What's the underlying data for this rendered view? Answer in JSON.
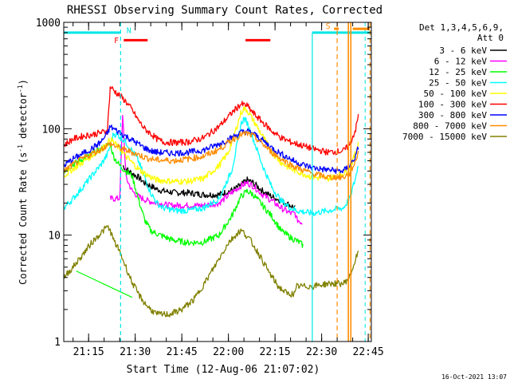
{
  "chart_data": {
    "type": "line",
    "title": "RHESSI Observing Summary Count Rates, Corrected",
    "xlabel": "Start Time (12-Aug-06 21:07:02)",
    "ylabel_main": "Corrected Count Rate (s",
    "ylabel_exp1": "-1",
    "ylabel_mid": " detector",
    "ylabel_exp2": "-1",
    "ylabel_end": ")",
    "y_scale": "log",
    "ylim": [
      1,
      1000
    ],
    "xlim": [
      0,
      99
    ],
    "x_ticks": [
      {
        "t": 8,
        "label": "21:15"
      },
      {
        "t": 23,
        "label": "21:30"
      },
      {
        "t": 38,
        "label": "21:45"
      },
      {
        "t": 53,
        "label": "22:00"
      },
      {
        "t": 68,
        "label": "22:15"
      },
      {
        "t": 83,
        "label": "22:30"
      },
      {
        "t": 98,
        "label": "22:45"
      }
    ],
    "y_ticks": [
      {
        "v": 1,
        "label": "1"
      },
      {
        "v": 10,
        "label": "10"
      },
      {
        "v": 100,
        "label": "100"
      },
      {
        "v": 1000,
        "label": "1000"
      }
    ],
    "legend_header": [
      "Det 1,3,4,5,6,9,",
      "Att 0"
    ],
    "legend_placement": "right",
    "footer_date": "16-Oct-2021 13:07",
    "flags": {
      "N": {
        "label": "N",
        "color": "#00e5e5"
      },
      "F": {
        "label": "F",
        "color": "#ff0000"
      },
      "S": {
        "label": "S",
        "color": "#ff8c00"
      }
    },
    "series": [
      {
        "name": "3 - 6 keV",
        "color": "#000000",
        "points": [
          [
            19,
            45
          ],
          [
            20,
            42
          ],
          [
            22,
            38
          ],
          [
            24,
            35
          ],
          [
            26,
            31
          ],
          [
            28,
            29
          ],
          [
            30,
            27
          ],
          [
            32,
            26
          ],
          [
            36,
            25
          ],
          [
            40,
            25
          ],
          [
            45,
            24
          ],
          [
            50,
            24
          ],
          [
            55,
            27
          ],
          [
            58,
            31
          ],
          [
            59,
            33
          ],
          [
            61,
            31
          ],
          [
            64,
            26
          ],
          [
            67,
            23
          ],
          [
            70,
            21
          ],
          [
            73,
            19
          ],
          [
            74.5,
            18
          ]
        ]
      },
      {
        "name": "6 - 12 keV",
        "color": "#ff00ff",
        "points": [
          [
            15,
            22
          ],
          [
            17,
            22
          ],
          [
            18,
            22
          ],
          [
            19,
            140
          ],
          [
            20,
            35
          ],
          [
            22,
            26
          ],
          [
            24,
            23
          ],
          [
            27,
            21
          ],
          [
            30,
            20
          ],
          [
            34,
            19
          ],
          [
            38,
            19
          ],
          [
            45,
            19
          ],
          [
            50,
            20
          ],
          [
            54,
            25
          ],
          [
            57,
            29
          ],
          [
            59,
            31
          ],
          [
            61,
            29
          ],
          [
            64,
            24
          ],
          [
            67,
            21
          ],
          [
            70,
            18
          ],
          [
            73,
            16
          ],
          [
            74.5,
            16
          ],
          [
            75,
            14
          ],
          [
            77,
            13
          ]
        ]
      },
      {
        "name": "12 - 25 keV",
        "color": "#00ff00",
        "points": [
          [
            0,
            40
          ],
          [
            3,
            46
          ],
          [
            6,
            52
          ],
          [
            9,
            58
          ],
          [
            12,
            64
          ],
          [
            14,
            70
          ],
          [
            15,
            72
          ],
          [
            16,
            55
          ],
          [
            18,
            45
          ],
          [
            20,
            40
          ],
          [
            22,
            36
          ],
          [
            24,
            22
          ],
          [
            26,
            14
          ],
          [
            28,
            11
          ],
          [
            31,
            10
          ],
          [
            35,
            9
          ],
          [
            40,
            8.5
          ],
          [
            45,
            8.6
          ],
          [
            50,
            10
          ],
          [
            54,
            15
          ],
          [
            57,
            23
          ],
          [
            59,
            26
          ],
          [
            61,
            24
          ],
          [
            64,
            19
          ],
          [
            67,
            15
          ],
          [
            70,
            11
          ],
          [
            73,
            9.5
          ],
          [
            74.5,
            9
          ],
          [
            76,
            8.5
          ],
          [
            77,
            8
          ]
        ]
      },
      {
        "name": "25 - 50 keV",
        "color": "#00ffff",
        "points": [
          [
            0,
            18
          ],
          [
            3,
            22
          ],
          [
            6,
            28
          ],
          [
            9,
            36
          ],
          [
            12,
            46
          ],
          [
            14,
            57
          ],
          [
            15,
            70
          ],
          [
            16,
            90
          ],
          [
            18,
            85
          ],
          [
            20,
            75
          ],
          [
            22,
            62
          ],
          [
            24,
            50
          ],
          [
            26,
            35
          ],
          [
            28,
            25
          ],
          [
            30,
            20
          ],
          [
            32,
            18
          ],
          [
            36,
            17
          ],
          [
            40,
            17
          ],
          [
            45,
            18
          ],
          [
            50,
            22
          ],
          [
            54,
            40
          ],
          [
            56,
            75
          ],
          [
            57,
            110
          ],
          [
            58,
            125
          ],
          [
            59,
            115
          ],
          [
            61,
            80
          ],
          [
            64,
            45
          ],
          [
            67,
            28
          ],
          [
            70,
            21
          ],
          [
            73,
            18
          ],
          [
            75,
            17
          ],
          [
            80,
            16
          ],
          [
            85,
            17
          ],
          [
            90,
            18
          ],
          [
            92,
            22
          ],
          [
            94,
            35
          ],
          [
            95,
            50
          ]
        ]
      },
      {
        "name": "50 - 100 keV",
        "color": "#ffff00",
        "points": [
          [
            0,
            36
          ],
          [
            3,
            42
          ],
          [
            6,
            48
          ],
          [
            9,
            56
          ],
          [
            12,
            64
          ],
          [
            14,
            72
          ],
          [
            15,
            80
          ],
          [
            16,
            75
          ],
          [
            18,
            65
          ],
          [
            20,
            55
          ],
          [
            22,
            48
          ],
          [
            24,
            42
          ],
          [
            26,
            38
          ],
          [
            28,
            35
          ],
          [
            30,
            33
          ],
          [
            35,
            32
          ],
          [
            40,
            32
          ],
          [
            45,
            34
          ],
          [
            50,
            45
          ],
          [
            53,
            60
          ],
          [
            55,
            90
          ],
          [
            57,
            140
          ],
          [
            58,
            155
          ],
          [
            59,
            150
          ],
          [
            61,
            120
          ],
          [
            64,
            85
          ],
          [
            67,
            60
          ],
          [
            70,
            48
          ],
          [
            73,
            42
          ],
          [
            75,
            40
          ],
          [
            80,
            35
          ],
          [
            85,
            34
          ],
          [
            90,
            38
          ],
          [
            92,
            42
          ],
          [
            94,
            60
          ],
          [
            95,
            80
          ]
        ]
      },
      {
        "name": "100 - 300 keV",
        "color": "#ff0000",
        "points": [
          [
            0,
            70
          ],
          [
            3,
            80
          ],
          [
            6,
            85
          ],
          [
            9,
            88
          ],
          [
            12,
            92
          ],
          [
            14,
            95
          ],
          [
            15,
            250
          ],
          [
            16,
            230
          ],
          [
            18,
            205
          ],
          [
            20,
            180
          ],
          [
            22,
            150
          ],
          [
            24,
            120
          ],
          [
            26,
            100
          ],
          [
            28,
            90
          ],
          [
            30,
            80
          ],
          [
            32,
            75
          ],
          [
            36,
            74
          ],
          [
            40,
            75
          ],
          [
            45,
            82
          ],
          [
            50,
            105
          ],
          [
            53,
            130
          ],
          [
            55,
            150
          ],
          [
            57,
            170
          ],
          [
            59,
            165
          ],
          [
            61,
            140
          ],
          [
            64,
            115
          ],
          [
            67,
            95
          ],
          [
            70,
            82
          ],
          [
            73,
            75
          ],
          [
            75,
            72
          ],
          [
            80,
            65
          ],
          [
            85,
            60
          ],
          [
            90,
            62
          ],
          [
            92,
            70
          ],
          [
            94,
            100
          ],
          [
            95,
            140
          ]
        ]
      },
      {
        "name": "300 - 800 keV",
        "color": "#0000ff",
        "points": [
          [
            0,
            45
          ],
          [
            3,
            52
          ],
          [
            6,
            58
          ],
          [
            9,
            65
          ],
          [
            12,
            75
          ],
          [
            14,
            90
          ],
          [
            15,
            105
          ],
          [
            16,
            100
          ],
          [
            18,
            92
          ],
          [
            20,
            85
          ],
          [
            22,
            78
          ],
          [
            24,
            72
          ],
          [
            26,
            66
          ],
          [
            28,
            62
          ],
          [
            30,
            60
          ],
          [
            35,
            59
          ],
          [
            40,
            60
          ],
          [
            45,
            63
          ],
          [
            50,
            72
          ],
          [
            54,
            82
          ],
          [
            57,
            92
          ],
          [
            59,
            95
          ],
          [
            61,
            90
          ],
          [
            64,
            78
          ],
          [
            67,
            66
          ],
          [
            70,
            58
          ],
          [
            73,
            52
          ],
          [
            75,
            48
          ],
          [
            80,
            43
          ],
          [
            85,
            41
          ],
          [
            90,
            40
          ],
          [
            92,
            45
          ],
          [
            94,
            55
          ],
          [
            95,
            70
          ]
        ]
      },
      {
        "name": "800 - 7000 keV",
        "color": "#ff8c00",
        "points": [
          [
            0,
            40
          ],
          [
            3,
            46
          ],
          [
            6,
            52
          ],
          [
            9,
            58
          ],
          [
            12,
            64
          ],
          [
            14,
            70
          ],
          [
            15,
            72
          ],
          [
            16,
            70
          ],
          [
            18,
            66
          ],
          [
            20,
            63
          ],
          [
            22,
            60
          ],
          [
            24,
            57
          ],
          [
            26,
            54
          ],
          [
            28,
            52
          ],
          [
            30,
            51
          ],
          [
            35,
            50
          ],
          [
            40,
            52
          ],
          [
            45,
            55
          ],
          [
            50,
            64
          ],
          [
            54,
            78
          ],
          [
            57,
            88
          ],
          [
            59,
            90
          ],
          [
            61,
            85
          ],
          [
            64,
            72
          ],
          [
            67,
            60
          ],
          [
            70,
            52
          ],
          [
            73,
            46
          ],
          [
            75,
            43
          ],
          [
            80,
            38
          ],
          [
            85,
            35
          ],
          [
            90,
            35
          ],
          [
            92,
            38
          ],
          [
            94,
            50
          ],
          [
            95,
            65
          ]
        ]
      },
      {
        "name": "7000 - 15000 keV",
        "color": "#808000",
        "points": [
          [
            0,
            4
          ],
          [
            3,
            5
          ],
          [
            6,
            6.5
          ],
          [
            9,
            8.5
          ],
          [
            12,
            10.5
          ],
          [
            14,
            12
          ],
          [
            15,
            11
          ],
          [
            16,
            9
          ],
          [
            18,
            7
          ],
          [
            20,
            5
          ],
          [
            22,
            3.6
          ],
          [
            24,
            2.8
          ],
          [
            26,
            2.3
          ],
          [
            28,
            2.0
          ],
          [
            30,
            1.8
          ],
          [
            34,
            1.8
          ],
          [
            38,
            2.0
          ],
          [
            42,
            2.5
          ],
          [
            46,
            3.8
          ],
          [
            50,
            6
          ],
          [
            53,
            8.5
          ],
          [
            56,
            10.5
          ],
          [
            57,
            11
          ],
          [
            58,
            10.5
          ],
          [
            60,
            9
          ],
          [
            63,
            6.5
          ],
          [
            66,
            4.5
          ],
          [
            69,
            3.3
          ],
          [
            72,
            2.8
          ],
          [
            74.5,
            2.8
          ],
          [
            75,
            3.3
          ],
          [
            80,
            3.3
          ],
          [
            85,
            3.5
          ],
          [
            90,
            3.5
          ],
          [
            92,
            4
          ],
          [
            94,
            6
          ],
          [
            95,
            7
          ]
        ]
      }
    ]
  }
}
